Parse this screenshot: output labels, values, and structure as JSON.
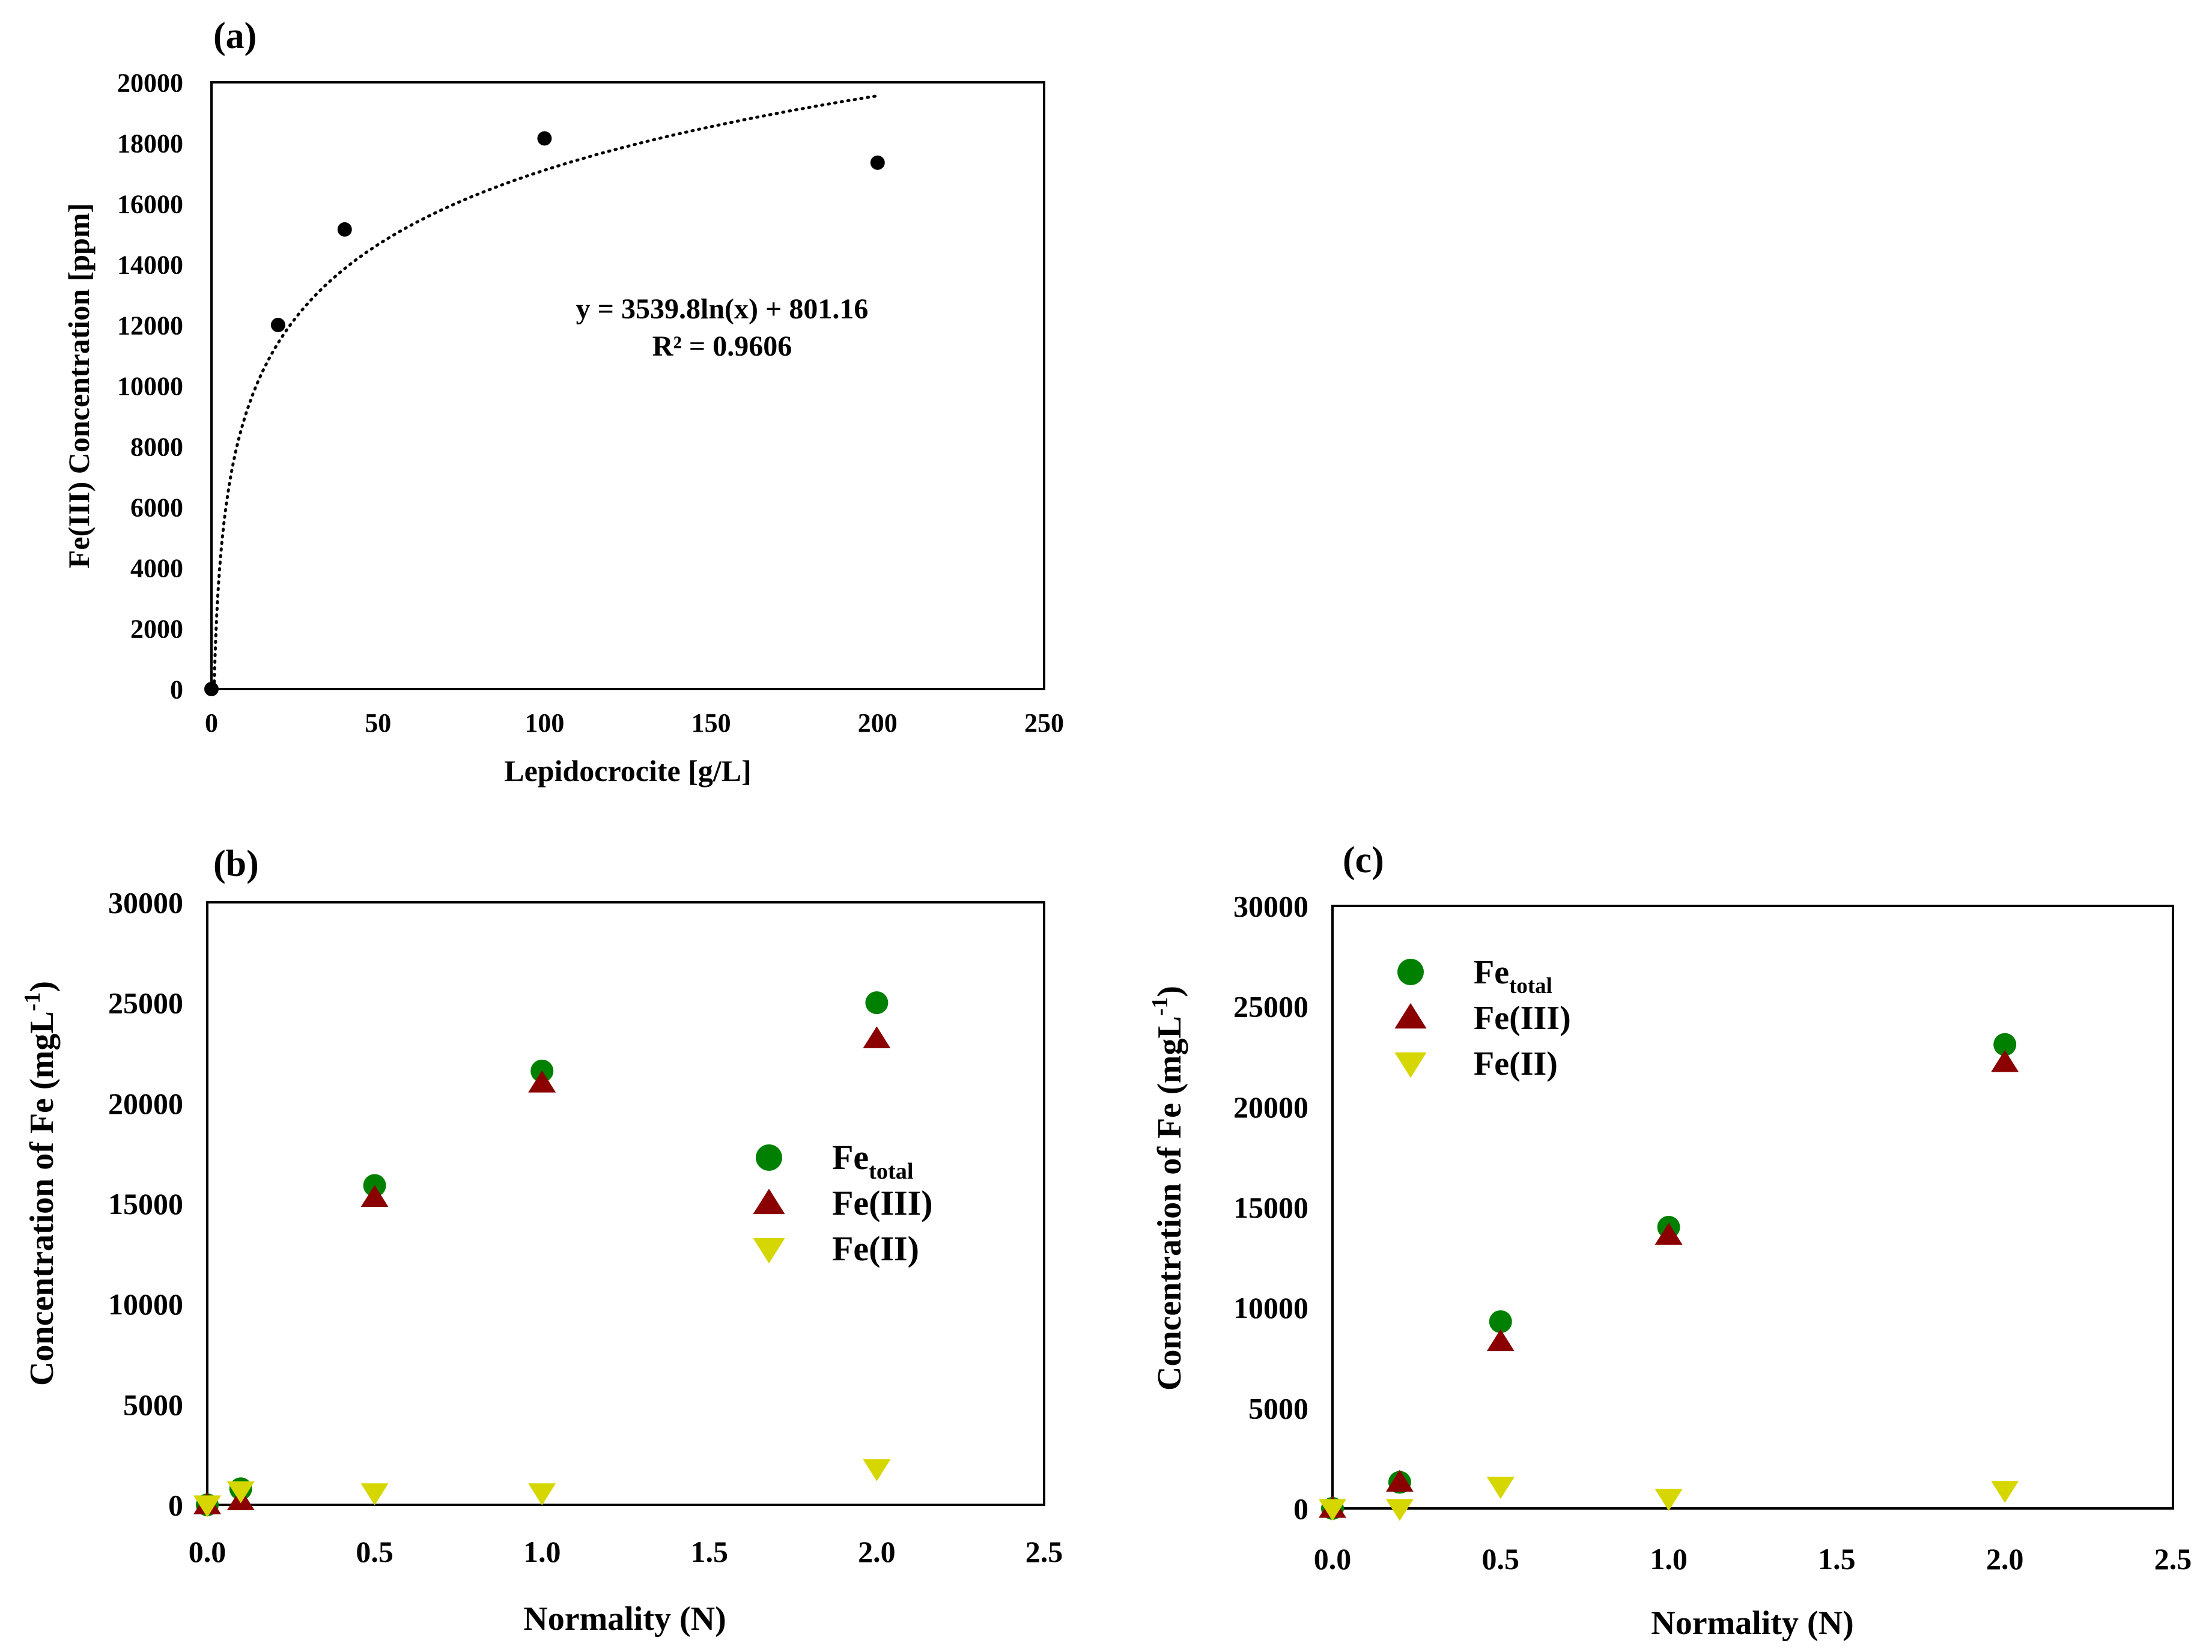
{
  "chart_data": [
    {
      "type": "scatter",
      "panel_label": "(a)",
      "title": "",
      "xlabel": "Lepidocrocite [g/L]",
      "ylabel": "Fe(III) Concentration [ppm]",
      "xlim": [
        0,
        250
      ],
      "ylim": [
        0,
        20000
      ],
      "xticks": [
        "0",
        "50",
        "100",
        "150",
        "200",
        "250"
      ],
      "yticks": [
        "0",
        "2000",
        "4000",
        "6000",
        "8000",
        "10000",
        "12000",
        "14000",
        "16000",
        "18000",
        "20000"
      ],
      "series": [
        {
          "name": "Fe(III)",
          "color": "#000000",
          "marker": "circle",
          "x": [
            0,
            20,
            40,
            100,
            200
          ],
          "y": [
            0,
            12000,
            15150,
            18150,
            17350
          ]
        }
      ],
      "trendline": {
        "type": "logarithmic",
        "a": 3539.8,
        "b": 801.16,
        "x_range": [
          0.8,
          200
        ],
        "equation_label": "y = 3539.8ln(x) + 801.16",
        "r2_label": "R² = 0.9606"
      }
    },
    {
      "type": "scatter",
      "panel_label": "(b)",
      "title": "",
      "xlabel": "Normality (N)",
      "ylabel": "Concentration of Fe (mgL",
      "ylabel_superscript": "-1",
      "ylabel_tail": ")",
      "xlim": [
        0,
        2.5
      ],
      "ylim": [
        0,
        30000
      ],
      "xticks": [
        "0.0",
        "0.5",
        "1.0",
        "1.5",
        "2.0",
        "2.5"
      ],
      "yticks": [
        "0",
        "5000",
        "10000",
        "15000",
        "20000",
        "25000",
        "30000"
      ],
      "legend_position": "center-right",
      "series": [
        {
          "name": "Fe",
          "name_subscript": "total",
          "color": "#008000",
          "marker": "circle",
          "x": [
            0.0,
            0.1,
            0.5,
            1.0,
            2.0
          ],
          "y": [
            0,
            800,
            15900,
            21600,
            25000
          ]
        },
        {
          "name": "Fe(III)",
          "color": "#8B0000",
          "marker": "triangle-up",
          "x": [
            0.0,
            0.1,
            0.5,
            1.0,
            2.0
          ],
          "y": [
            0,
            200,
            15300,
            21000,
            23200
          ]
        },
        {
          "name": "Fe(II)",
          "color": "#D6D600",
          "marker": "triangle-down",
          "x": [
            0.0,
            0.1,
            0.5,
            1.0,
            2.0
          ],
          "y": [
            0,
            700,
            600,
            600,
            1800
          ]
        }
      ]
    },
    {
      "type": "scatter",
      "panel_label": "(c)",
      "title": "",
      "xlabel": "Normality (N)",
      "ylabel": "Concentration of Fe (mgL",
      "ylabel_superscript": "-1",
      "ylabel_tail": ")",
      "xlim": [
        0,
        2.5
      ],
      "ylim": [
        0,
        30000
      ],
      "xticks": [
        "0.0",
        "0.5",
        "1.0",
        "1.5",
        "2.0",
        "2.5"
      ],
      "yticks": [
        "0",
        "5000",
        "10000",
        "15000",
        "20000",
        "25000",
        "30000"
      ],
      "legend_position": "top-left",
      "series": [
        {
          "name": "Fe",
          "name_subscript": "total",
          "color": "#008000",
          "marker": "circle",
          "x": [
            0.0,
            0.2,
            0.5,
            1.0,
            2.0
          ],
          "y": [
            0,
            1300,
            9300,
            14000,
            23100
          ]
        },
        {
          "name": "Fe(III)",
          "color": "#8B0000",
          "marker": "triangle-up",
          "x": [
            0.0,
            0.2,
            0.5,
            1.0,
            2.0
          ],
          "y": [
            0,
            1300,
            8300,
            13600,
            22200
          ]
        },
        {
          "name": "Fe(II)",
          "color": "#D6D600",
          "marker": "triangle-down",
          "x": [
            0.0,
            0.2,
            0.5,
            1.0,
            2.0
          ],
          "y": [
            0,
            0,
            1100,
            500,
            900
          ]
        }
      ]
    }
  ]
}
